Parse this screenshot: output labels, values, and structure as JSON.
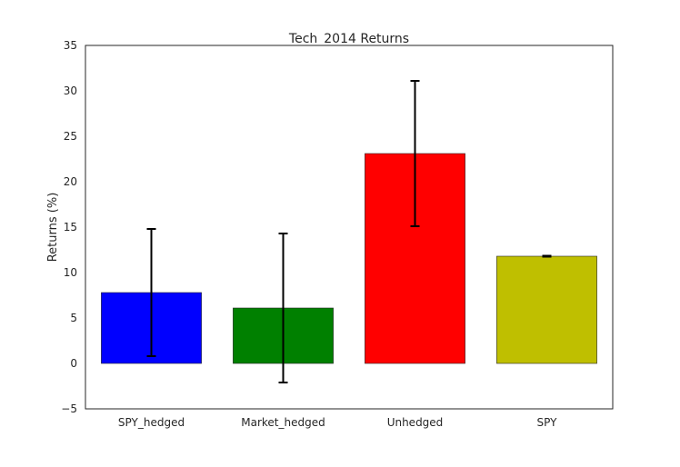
{
  "chart_data": {
    "type": "bar",
    "title": "Tech_2014 Returns",
    "xlabel": "",
    "ylabel": "Returns (%)",
    "ylim": [
      -5,
      35
    ],
    "yticks": [
      -5,
      0,
      5,
      10,
      15,
      20,
      25,
      30,
      35
    ],
    "grid": false,
    "categories": [
      "SPY_hedged",
      "Market_hedged",
      "Unhedged",
      "SPY"
    ],
    "values": [
      7.8,
      6.1,
      23.1,
      11.8
    ],
    "errors": [
      7.0,
      8.2,
      8.0,
      0.05
    ],
    "colors": [
      "#0000ff",
      "#008000",
      "#ff0000",
      "#bfbf00"
    ]
  }
}
